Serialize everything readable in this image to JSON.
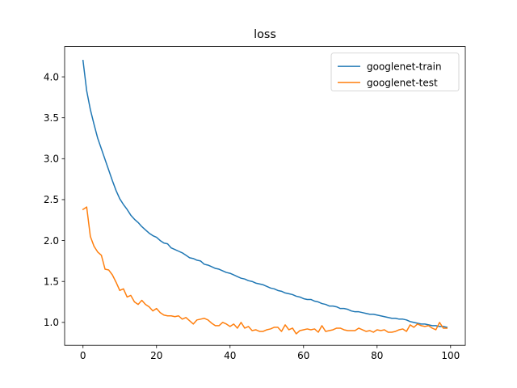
{
  "chart_data": {
    "type": "line",
    "title": "loss",
    "xlabel": "",
    "ylabel": "",
    "xlim": [
      -5,
      104
    ],
    "ylim": [
      0.72,
      4.37
    ],
    "xticks": [
      0,
      20,
      40,
      60,
      80,
      100
    ],
    "yticks": [
      1.0,
      1.5,
      2.0,
      2.5,
      3.0,
      3.5,
      4.0
    ],
    "xtick_labels": [
      "0",
      "20",
      "40",
      "60",
      "80",
      "100"
    ],
    "ytick_labels": [
      "1.0",
      "1.5",
      "2.0",
      "2.5",
      "3.0",
      "3.5",
      "4.0"
    ],
    "grid": false,
    "legend_position": "upper-right",
    "series": [
      {
        "name": "googlenet-train",
        "color": "#1f77b4",
        "x": [
          0,
          1,
          2,
          3,
          4,
          5,
          6,
          7,
          8,
          9,
          10,
          11,
          12,
          13,
          14,
          15,
          16,
          17,
          18,
          19,
          20,
          21,
          22,
          23,
          24,
          25,
          26,
          27,
          28,
          29,
          30,
          31,
          32,
          33,
          34,
          35,
          36,
          37,
          38,
          39,
          40,
          41,
          42,
          43,
          44,
          45,
          46,
          47,
          48,
          49,
          50,
          51,
          52,
          53,
          54,
          55,
          56,
          57,
          58,
          59,
          60,
          61,
          62,
          63,
          64,
          65,
          66,
          67,
          68,
          69,
          70,
          71,
          72,
          73,
          74,
          75,
          76,
          77,
          78,
          79,
          80,
          81,
          82,
          83,
          84,
          85,
          86,
          87,
          88,
          89,
          90,
          91,
          92,
          93,
          94,
          95,
          96,
          97,
          98,
          99
        ],
        "values": [
          4.2,
          3.83,
          3.6,
          3.42,
          3.25,
          3.12,
          2.99,
          2.86,
          2.73,
          2.61,
          2.51,
          2.44,
          2.38,
          2.31,
          2.26,
          2.22,
          2.17,
          2.13,
          2.09,
          2.06,
          2.04,
          2.0,
          1.97,
          1.96,
          1.91,
          1.89,
          1.87,
          1.85,
          1.82,
          1.79,
          1.78,
          1.76,
          1.75,
          1.71,
          1.7,
          1.68,
          1.66,
          1.65,
          1.63,
          1.61,
          1.6,
          1.58,
          1.56,
          1.54,
          1.53,
          1.51,
          1.5,
          1.48,
          1.47,
          1.46,
          1.44,
          1.42,
          1.41,
          1.39,
          1.38,
          1.36,
          1.35,
          1.34,
          1.32,
          1.31,
          1.29,
          1.28,
          1.28,
          1.26,
          1.25,
          1.23,
          1.22,
          1.2,
          1.2,
          1.19,
          1.17,
          1.17,
          1.16,
          1.14,
          1.13,
          1.13,
          1.12,
          1.11,
          1.1,
          1.1,
          1.09,
          1.08,
          1.07,
          1.06,
          1.05,
          1.05,
          1.04,
          1.04,
          1.03,
          1.01,
          1.0,
          0.99,
          0.98,
          0.98,
          0.97,
          0.96,
          0.96,
          0.95,
          0.95,
          0.94
        ]
      },
      {
        "name": "googlenet-test",
        "color": "#ff7f0e",
        "x": [
          0,
          1,
          2,
          3,
          4,
          5,
          6,
          7,
          8,
          9,
          10,
          11,
          12,
          13,
          14,
          15,
          16,
          17,
          18,
          19,
          20,
          21,
          22,
          23,
          24,
          25,
          26,
          27,
          28,
          29,
          30,
          31,
          32,
          33,
          34,
          35,
          36,
          37,
          38,
          39,
          40,
          41,
          42,
          43,
          44,
          45,
          46,
          47,
          48,
          49,
          50,
          51,
          52,
          53,
          54,
          55,
          56,
          57,
          58,
          59,
          60,
          61,
          62,
          63,
          64,
          65,
          66,
          67,
          68,
          69,
          70,
          71,
          72,
          73,
          74,
          75,
          76,
          77,
          78,
          79,
          80,
          81,
          82,
          83,
          84,
          85,
          86,
          87,
          88,
          89,
          90,
          91,
          92,
          93,
          94,
          95,
          96,
          97,
          98,
          99
        ],
        "values": [
          2.38,
          2.41,
          2.05,
          1.93,
          1.86,
          1.82,
          1.65,
          1.64,
          1.58,
          1.49,
          1.39,
          1.41,
          1.31,
          1.33,
          1.25,
          1.22,
          1.27,
          1.22,
          1.19,
          1.14,
          1.17,
          1.12,
          1.09,
          1.08,
          1.08,
          1.07,
          1.08,
          1.04,
          1.06,
          1.02,
          0.98,
          1.03,
          1.04,
          1.05,
          1.03,
          0.99,
          0.96,
          0.96,
          1.0,
          0.98,
          0.95,
          0.98,
          0.93,
          1.0,
          0.93,
          0.95,
          0.9,
          0.91,
          0.89,
          0.89,
          0.91,
          0.92,
          0.94,
          0.94,
          0.89,
          0.97,
          0.91,
          0.93,
          0.86,
          0.9,
          0.91,
          0.92,
          0.91,
          0.92,
          0.88,
          0.96,
          0.89,
          0.9,
          0.91,
          0.93,
          0.93,
          0.91,
          0.9,
          0.9,
          0.9,
          0.93,
          0.91,
          0.89,
          0.9,
          0.88,
          0.91,
          0.9,
          0.91,
          0.88,
          0.88,
          0.89,
          0.91,
          0.92,
          0.89,
          0.97,
          0.94,
          0.98,
          0.96,
          0.95,
          0.96,
          0.93,
          0.91,
          1.0,
          0.93,
          0.93
        ]
      }
    ]
  }
}
